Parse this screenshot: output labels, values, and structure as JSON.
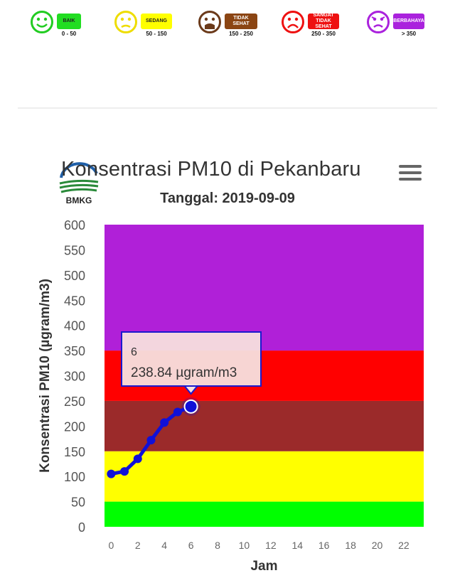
{
  "legend": [
    {
      "label": "BAIK",
      "range": "0 - 50",
      "color": "#22dd22",
      "icon": "smile-face-icon",
      "face_color": "#22cc22"
    },
    {
      "label": "SEDANG",
      "range": "50 - 150",
      "color": "#ffff00",
      "icon": "neutral-face-icon",
      "face_color": "#eedd00"
    },
    {
      "label": "TIDAK SEHAT",
      "range": "150 - 250",
      "color": "#8b4513",
      "icon": "sick-face-icon",
      "face_color": "#6b3a1a"
    },
    {
      "label": "SANGAT TIDAK SEHAT",
      "range": "250 - 350",
      "color": "#ee1111",
      "icon": "sad-face-icon",
      "face_color": "#ee1111"
    },
    {
      "label": "BERBAHAYA",
      "range": "> 350",
      "color": "#aa22dd",
      "icon": "angry-face-icon",
      "face_color": "#aa22dd"
    }
  ],
  "logo": {
    "text": "BMKG"
  },
  "chart_data": {
    "type": "line",
    "title": "Konsentrasi PM10 di Pekanbaru",
    "subtitle": "Tanggal: 2019-09-09",
    "xlabel": "Jam",
    "ylabel": "Konsentrasi PM10 (µgram/m3)",
    "xlim": [
      -0.5,
      23.5
    ],
    "ylim": [
      0,
      600
    ],
    "x_ticks": [
      0,
      2,
      4,
      6,
      8,
      10,
      12,
      14,
      16,
      18,
      20,
      22
    ],
    "y_ticks": [
      0,
      50,
      100,
      150,
      200,
      250,
      300,
      350,
      400,
      450,
      500,
      550,
      600
    ],
    "bands": [
      {
        "from": 0,
        "to": 50,
        "color": "#00ff00"
      },
      {
        "from": 50,
        "to": 150,
        "color": "#ffff00"
      },
      {
        "from": 150,
        "to": 250,
        "color": "#9b2a2a"
      },
      {
        "from": 250,
        "to": 350,
        "color": "#ff0000"
      },
      {
        "from": 350,
        "to": 600,
        "color": "#b020d8"
      }
    ],
    "series": [
      {
        "color": "#1010d8",
        "x": [
          0,
          1,
          2,
          3,
          4,
          5,
          6
        ],
        "values": [
          105,
          110,
          135,
          172,
          207,
          228,
          238.84
        ]
      }
    ],
    "tooltip": {
      "x": "6",
      "value": "238.84 µgram/m3"
    }
  }
}
